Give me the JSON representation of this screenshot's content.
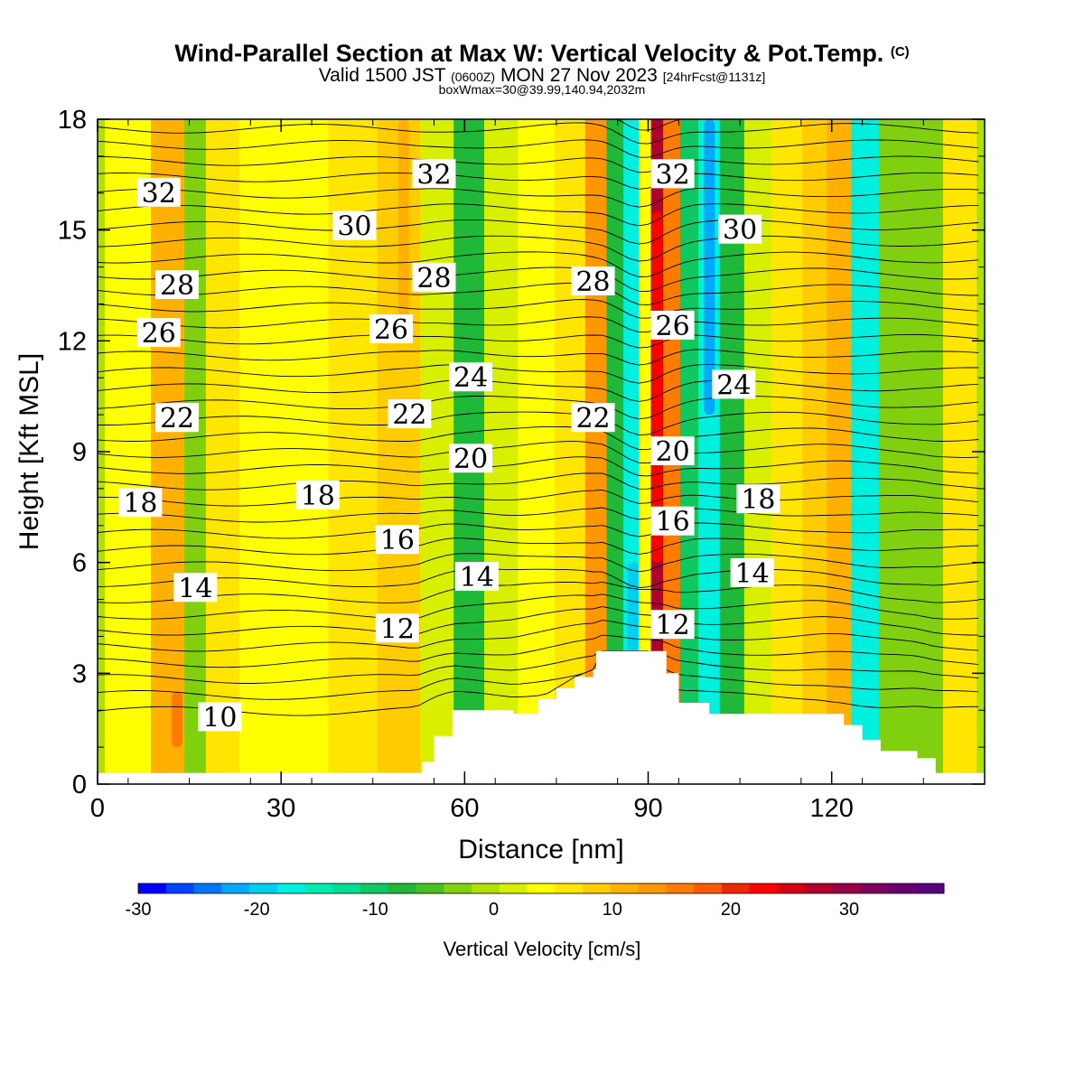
{
  "header": {
    "title": "Wind-Parallel Section at Max W: Vertical Velocity & Pot.Temp.",
    "title_mark": "(C)",
    "valid_a": "Valid 1500 JST",
    "valid_utc": "(0600Z)",
    "valid_b": "MON 27 Nov 2023",
    "forecast": "[24hrFcst@1131z]",
    "box_info": "boxWmax=30@39.99,140.94,2032m"
  },
  "chart_data": {
    "type": "heatmap",
    "xlabel": "Distance [nm]",
    "ylabel": "Height [Kft MSL]",
    "xlim": [
      0,
      145
    ],
    "ylim": [
      0,
      18
    ],
    "xticks": [
      0,
      30,
      60,
      90,
      120
    ],
    "yticks": [
      0,
      3,
      6,
      9,
      12,
      15,
      18
    ],
    "colorbar": {
      "label": "Vertical Velocity [cm/s]",
      "range": [
        -30,
        38
      ],
      "ticks": [
        -30,
        -20,
        -10,
        0,
        10,
        20,
        30
      ],
      "colors": [
        "#0000ff",
        "#0044ff",
        "#0077ff",
        "#00aaff",
        "#00d0f0",
        "#00f0e0",
        "#00ecb0",
        "#00dc90",
        "#10c860",
        "#20b838",
        "#48c020",
        "#80d010",
        "#b0e000",
        "#d8f000",
        "#ffff00",
        "#ffe600",
        "#ffcc00",
        "#ffb000",
        "#ff9800",
        "#ff7c00",
        "#ff5a00",
        "#f02800",
        "#ff0000",
        "#d80010",
        "#b00030",
        "#980048",
        "#800060",
        "#6a0070",
        "#580080"
      ]
    },
    "velocity_columns": [
      {
        "x": -2,
        "w": 0
      },
      {
        "x": 5,
        "w": 5
      },
      {
        "x": 13,
        "w": 11
      },
      {
        "x": 16,
        "w": -2
      },
      {
        "x": 20,
        "w": 7
      },
      {
        "x": 27,
        "w": 4
      },
      {
        "x": 34,
        "w": 4
      },
      {
        "x": 42,
        "w": 6
      },
      {
        "x": 50,
        "w": 8
      },
      {
        "x": 56,
        "w": 1
      },
      {
        "x": 61,
        "w": -7
      },
      {
        "x": 66,
        "w": 2
      },
      {
        "x": 72,
        "w": 4
      },
      {
        "x": 78,
        "w": 6
      },
      {
        "x": 82,
        "w": 14
      },
      {
        "x": 85,
        "w": -8
      },
      {
        "x": 87.5,
        "w": -17
      },
      {
        "x": 90,
        "w": 5
      },
      {
        "x": 91.5,
        "w": 27
      },
      {
        "x": 94,
        "w": 16
      },
      {
        "x": 97,
        "w": -10
      },
      {
        "x": 100,
        "w": -18
      },
      {
        "x": 104,
        "w": -8
      },
      {
        "x": 108,
        "w": 2
      },
      {
        "x": 113,
        "w": 6
      },
      {
        "x": 118,
        "w": 8
      },
      {
        "x": 121,
        "w": 10
      },
      {
        "x": 126,
        "w": -16
      },
      {
        "x": 130,
        "w": -4
      },
      {
        "x": 136,
        "w": -2
      },
      {
        "x": 141,
        "w": 6
      },
      {
        "x": 147,
        "w": 0
      }
    ],
    "terrain": [
      [
        0,
        0.3
      ],
      [
        52,
        0.3
      ],
      [
        53,
        0.6
      ],
      [
        55,
        1.3
      ],
      [
        58,
        2.0
      ],
      [
        62,
        2.0
      ],
      [
        68,
        1.9
      ],
      [
        72,
        2.3
      ],
      [
        75,
        2.6
      ],
      [
        78,
        2.9
      ],
      [
        81,
        3.1
      ],
      [
        81.5,
        3.6
      ],
      [
        91,
        3.6
      ],
      [
        93,
        3.0
      ],
      [
        95,
        2.2
      ],
      [
        100,
        1.9
      ],
      [
        118,
        1.9
      ],
      [
        122,
        1.6
      ],
      [
        125,
        1.2
      ],
      [
        128,
        0.9
      ],
      [
        134,
        0.7
      ],
      [
        137,
        0.3
      ],
      [
        145,
        0.3
      ]
    ],
    "theta_labels": [
      {
        "x": 10,
        "y": 16.0,
        "text": "32"
      },
      {
        "x": 55,
        "y": 16.5,
        "text": "32"
      },
      {
        "x": 94,
        "y": 16.5,
        "text": "32"
      },
      {
        "x": 42,
        "y": 15.1,
        "text": "30"
      },
      {
        "x": 105,
        "y": 15.0,
        "text": "30"
      },
      {
        "x": 13,
        "y": 13.5,
        "text": "28"
      },
      {
        "x": 55,
        "y": 13.7,
        "text": "28"
      },
      {
        "x": 81,
        "y": 13.6,
        "text": "28"
      },
      {
        "x": 10,
        "y": 12.2,
        "text": "26"
      },
      {
        "x": 48,
        "y": 12.3,
        "text": "26"
      },
      {
        "x": 94,
        "y": 12.4,
        "text": "26"
      },
      {
        "x": 61,
        "y": 11.0,
        "text": "24"
      },
      {
        "x": 104,
        "y": 10.8,
        "text": "24"
      },
      {
        "x": 13,
        "y": 9.9,
        "text": "22"
      },
      {
        "x": 51,
        "y": 10.0,
        "text": "22"
      },
      {
        "x": 81,
        "y": 9.9,
        "text": "22"
      },
      {
        "x": 61,
        "y": 8.8,
        "text": "20"
      },
      {
        "x": 94,
        "y": 9.0,
        "text": "20"
      },
      {
        "x": 7,
        "y": 7.6,
        "text": "18"
      },
      {
        "x": 36,
        "y": 7.8,
        "text": "18"
      },
      {
        "x": 108,
        "y": 7.7,
        "text": "18"
      },
      {
        "x": 49,
        "y": 6.6,
        "text": "16"
      },
      {
        "x": 94,
        "y": 7.1,
        "text": "16"
      },
      {
        "x": 16,
        "y": 5.3,
        "text": "14"
      },
      {
        "x": 62,
        "y": 5.6,
        "text": "14"
      },
      {
        "x": 107,
        "y": 5.7,
        "text": "14"
      },
      {
        "x": 49,
        "y": 4.2,
        "text": "12"
      },
      {
        "x": 94,
        "y": 4.3,
        "text": "12"
      },
      {
        "x": 20,
        "y": 1.8,
        "text": "10"
      }
    ]
  }
}
